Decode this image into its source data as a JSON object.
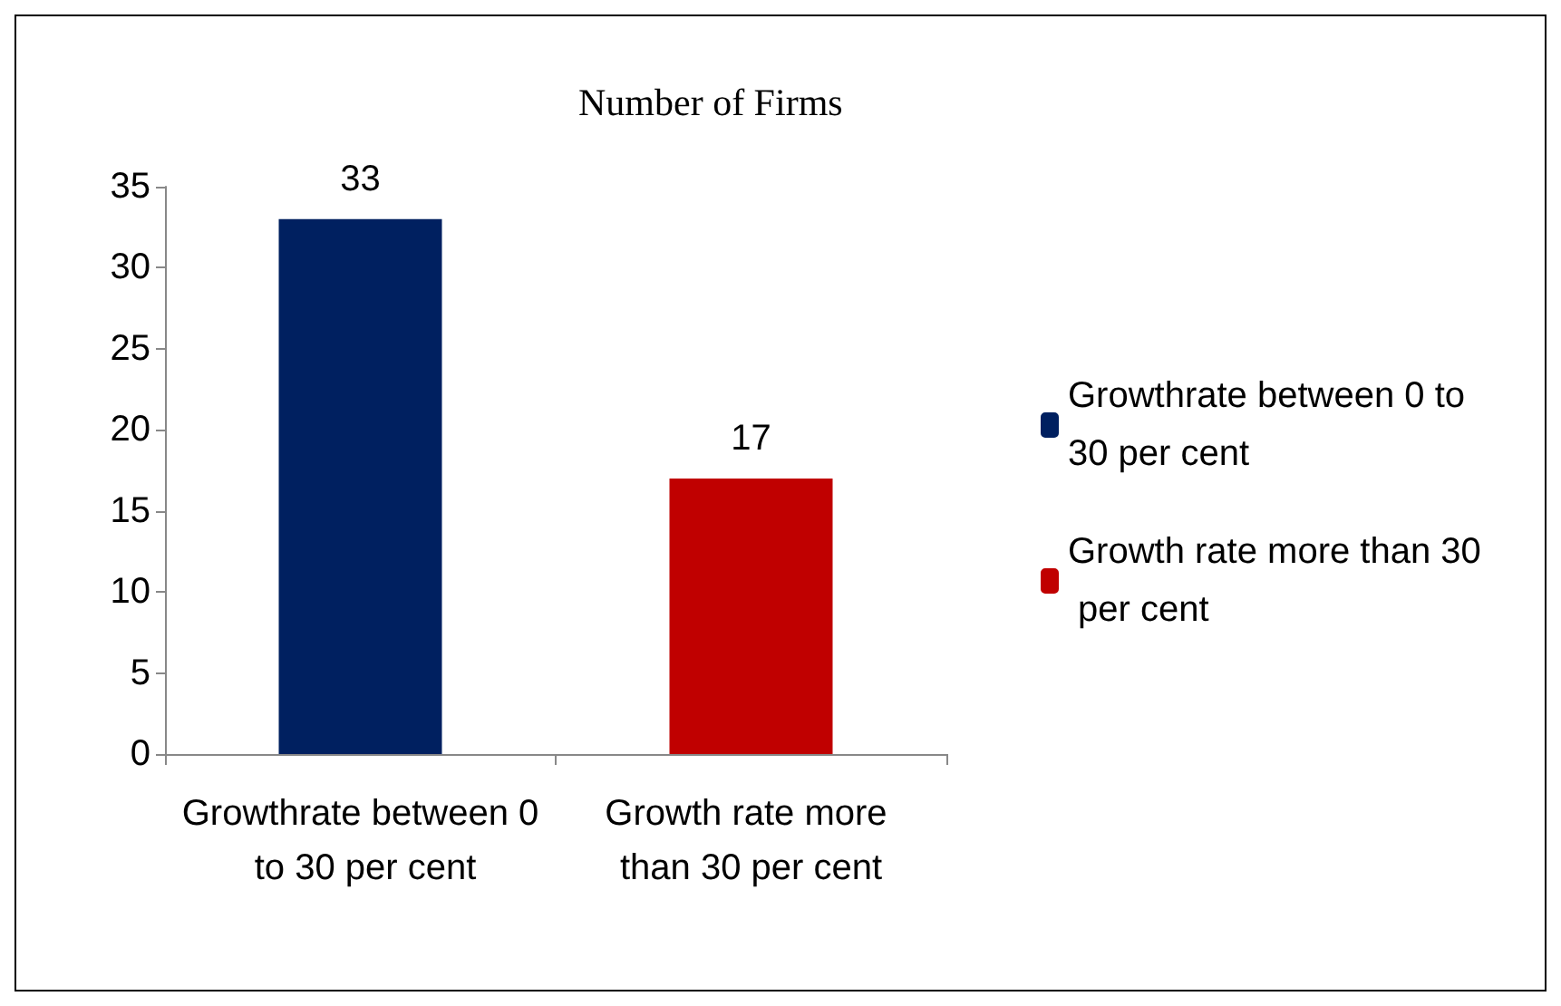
{
  "chart_data": {
    "type": "bar",
    "title": "Number of Firms",
    "categories": [
      "Growthrate between 0 to 30 per cent",
      "Growth rate more than 30 per cent"
    ],
    "series": [
      {
        "name": "Growthrate between 0 to 30 per cent",
        "color": "#002060",
        "values": [
          33,
          null
        ]
      },
      {
        "name": "Growth rate more than 30 per cent",
        "color": "#c00000",
        "values": [
          null,
          17
        ]
      }
    ],
    "ylim": [
      0,
      35
    ],
    "yticks": [
      0,
      5,
      10,
      15,
      20,
      25,
      30,
      35
    ],
    "grid": false,
    "legend": "right",
    "data_labels": true
  }
}
